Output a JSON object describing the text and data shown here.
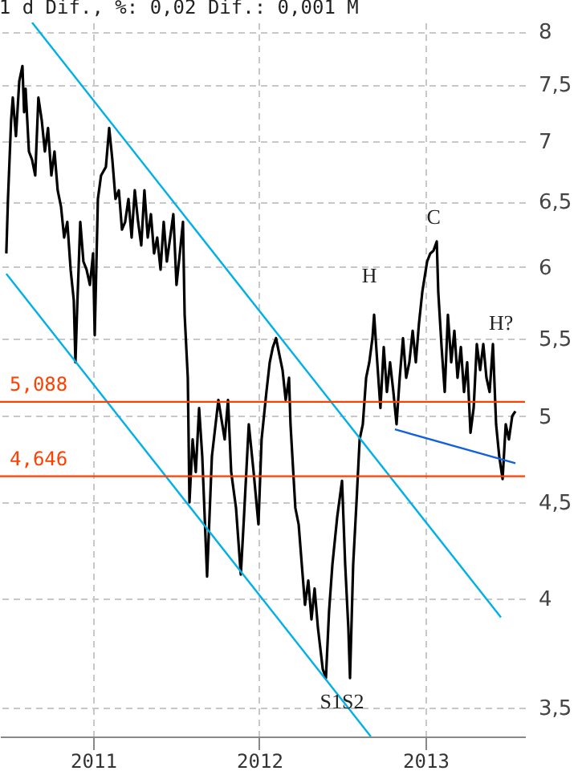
{
  "chart_data": {
    "type": "line",
    "title": "1 d Dif., %: 0,02 Dif.: 0,001 M",
    "log": true,
    "grid": true,
    "xlim": [
      2010.44,
      2013.599
    ],
    "xticks": [
      2011,
      2012,
      2013
    ],
    "ylim": [
      3.38,
      8.09
    ],
    "yticks": [
      {
        "value": 3.5,
        "label": "3,5"
      },
      4,
      {
        "value": 4.5,
        "label": "4,5"
      },
      5,
      {
        "value": 5.5,
        "label": "5,5"
      },
      6,
      {
        "value": 6.5,
        "label": "6,5"
      },
      7,
      {
        "value": 7.5,
        "label": "7,5"
      },
      8
    ],
    "ref_lines": [
      {
        "axis": "y",
        "value": 5.088,
        "label": "5,088",
        "color": "#ff4000"
      },
      {
        "axis": "y",
        "value": 4.646,
        "label": "4,646",
        "color": "#ff4000"
      }
    ],
    "annotations": [
      {
        "text": "H",
        "x": 2012.691,
        "y": 5.66
      },
      {
        "text": "C",
        "x": 2013.068,
        "y": 6.19
      },
      {
        "text": "H?",
        "x": 2013.406,
        "y": 5.46
      },
      {
        "text": "S1S2",
        "x": 2012.401,
        "y": 3.63
      }
    ],
    "series": [
      {
        "color": "#000000",
        "x": [
          2010.478,
          2010.488,
          2010.507,
          2010.517,
          2010.536,
          2010.556,
          2010.575,
          2010.585,
          2010.594,
          2010.614,
          2010.633,
          2010.652,
          2010.671,
          2010.691,
          2010.71,
          2010.729,
          2010.749,
          2010.768,
          2010.787,
          2010.807,
          2010.826,
          2010.845,
          2010.865,
          2010.884,
          2010.894,
          2010.903,
          2010.923,
          2010.942,
          2010.961,
          2010.981,
          2011.0,
          2011.01,
          2011.029,
          2011.048,
          2011.077,
          2011.097,
          2011.116,
          2011.135,
          2011.155,
          2011.174,
          2011.193,
          2011.213,
          2011.232,
          2011.251,
          2011.271,
          2011.29,
          2011.309,
          2011.329,
          2011.348,
          2011.367,
          2011.386,
          2011.406,
          2011.425,
          2011.444,
          2011.464,
          2011.483,
          2011.502,
          2011.522,
          2011.541,
          2011.551,
          2011.57,
          2011.58,
          2011.599,
          2011.618,
          2011.638,
          2011.657,
          2011.686,
          2011.715,
          2011.754,
          2011.792,
          2011.812,
          2011.831,
          2011.86,
          2011.889,
          2011.908,
          2011.937,
          2011.966,
          2011.995,
          2012.014,
          2012.043,
          2012.063,
          2012.082,
          2012.101,
          2012.121,
          2012.14,
          2012.159,
          2012.179,
          2012.188,
          2012.217,
          2012.237,
          2012.256,
          2012.275,
          2012.295,
          2012.314,
          2012.333,
          2012.353,
          2012.382,
          2012.401,
          2012.42,
          2012.44,
          2012.469,
          2012.498,
          2012.517,
          2012.536,
          2012.546,
          2012.565,
          2012.585,
          2012.604,
          2012.623,
          2012.643,
          2012.662,
          2012.681,
          2012.691,
          2012.71,
          2012.729,
          2012.749,
          2012.768,
          2012.787,
          2012.807,
          2012.826,
          2012.845,
          2012.865,
          2012.884,
          2012.903,
          2012.923,
          2012.942,
          2012.961,
          2012.981,
          2013.01,
          2013.029,
          2013.048,
          2013.068,
          2013.077,
          2013.097,
          2013.116,
          2013.135,
          2013.155,
          2013.174,
          2013.193,
          2013.213,
          2013.232,
          2013.251,
          2013.271,
          2013.29,
          2013.309,
          2013.329,
          2013.348,
          2013.367,
          2013.386,
          2013.406,
          2013.425,
          2013.444,
          2013.464,
          2013.483,
          2013.502,
          2013.522,
          2013.541
        ],
        "values": [
          6.1,
          6.52,
          7.18,
          7.38,
          7.04,
          7.53,
          7.67,
          7.25,
          7.46,
          6.91,
          6.84,
          6.71,
          7.38,
          7.18,
          6.91,
          7.11,
          6.71,
          6.91,
          6.59,
          6.46,
          6.22,
          6.34,
          5.98,
          5.76,
          5.34,
          5.66,
          6.34,
          6.04,
          5.98,
          5.87,
          6.1,
          5.52,
          6.52,
          6.71,
          6.78,
          7.11,
          6.84,
          6.52,
          6.59,
          6.28,
          6.34,
          6.52,
          6.22,
          6.59,
          6.34,
          6.16,
          6.59,
          6.22,
          6.4,
          6.1,
          6.22,
          5.98,
          6.34,
          6.04,
          6.22,
          6.4,
          5.87,
          6.1,
          6.34,
          5.66,
          5.24,
          4.5,
          4.86,
          4.67,
          5.05,
          4.76,
          4.11,
          4.76,
          5.1,
          4.86,
          5.1,
          4.67,
          4.47,
          4.12,
          4.42,
          4.95,
          4.67,
          4.38,
          4.86,
          5.15,
          5.34,
          5.44,
          5.5,
          5.39,
          5.29,
          5.1,
          5.24,
          4.95,
          4.47,
          4.38,
          4.17,
          3.97,
          4.09,
          3.9,
          4.05,
          3.86,
          3.67,
          3.63,
          3.94,
          4.17,
          4.42,
          4.62,
          4.17,
          3.86,
          3.63,
          4.17,
          4.5,
          4.86,
          4.95,
          5.24,
          5.34,
          5.5,
          5.66,
          5.34,
          5.05,
          5.44,
          5.15,
          5.34,
          5.15,
          4.95,
          5.24,
          5.5,
          5.24,
          5.34,
          5.55,
          5.34,
          5.6,
          5.82,
          6.04,
          6.1,
          6.12,
          6.19,
          5.82,
          5.44,
          5.15,
          5.66,
          5.34,
          5.55,
          5.24,
          5.44,
          5.15,
          5.34,
          4.9,
          5.05,
          5.46,
          5.29,
          5.46,
          5.24,
          5.15,
          5.46,
          4.95,
          4.76,
          4.63,
          4.95,
          4.86,
          5.0,
          5.03
        ]
      },
      {
        "type": "line",
        "color": "#00b0e8",
        "x": [
          2010.633,
          2013.454
        ],
        "values": [
          8.09,
          3.91
        ]
      },
      {
        "type": "line",
        "color": "#00b0e8",
        "x": [
          2010.478,
          2012.671
        ],
        "values": [
          5.95,
          3.38
        ]
      },
      {
        "type": "line",
        "color": "#1060e0",
        "x": [
          2012.816,
          2013.541
        ],
        "values": [
          4.92,
          4.72
        ]
      }
    ]
  }
}
